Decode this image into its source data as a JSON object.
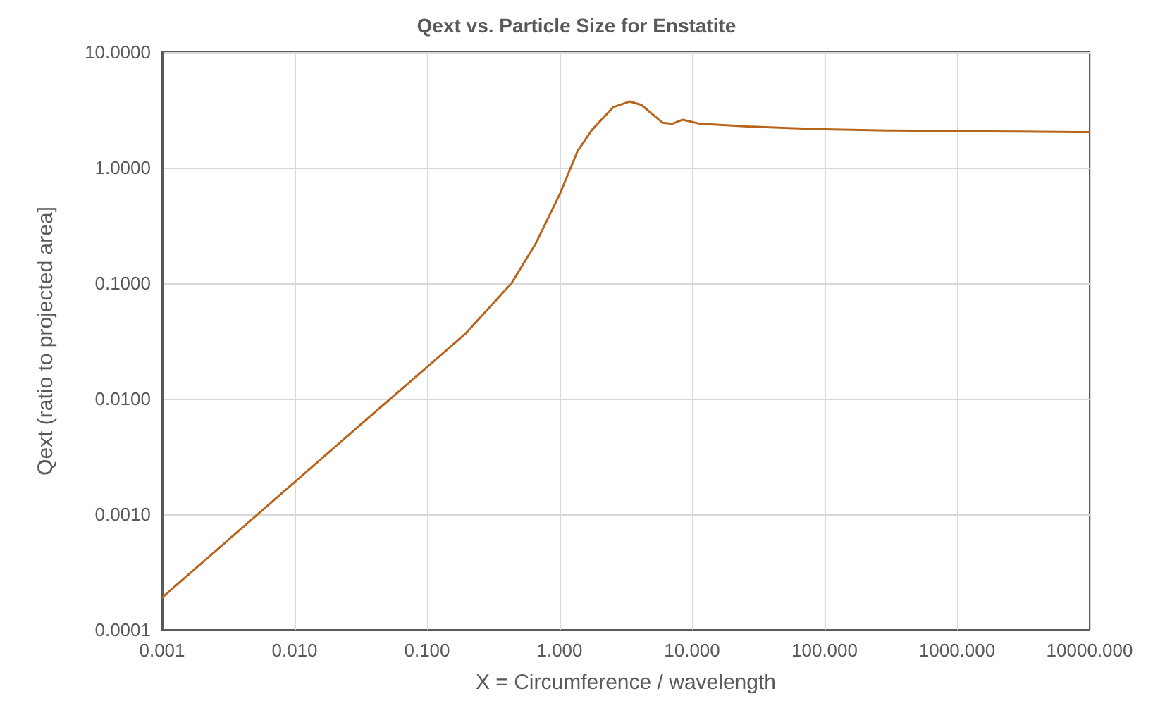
{
  "chart_data": {
    "type": "line",
    "title": "Qext vs. Particle Size for Enstatite",
    "xlabel": "X = Circumference / wavelength",
    "ylabel": "Qext (ratio to projected area]",
    "log": "xy",
    "grid": true,
    "marker": "none",
    "line_style": "solid",
    "xlim": [
      0.001,
      10000
    ],
    "ylim": [
      0.0001,
      10
    ],
    "xticks": [
      {
        "value": 0.001,
        "label": "0.001"
      },
      {
        "value": 0.01,
        "label": "0.010"
      },
      {
        "value": 0.1,
        "label": "0.100"
      },
      {
        "value": 1,
        "label": "1.000"
      },
      {
        "value": 10,
        "label": "10.000"
      },
      {
        "value": 100,
        "label": "100.000"
      },
      {
        "value": 1000,
        "label": "1000.000"
      },
      {
        "value": 10000,
        "label": "10000.000"
      }
    ],
    "yticks": [
      {
        "value": 0.0001,
        "label": "0.0001"
      },
      {
        "value": 0.001,
        "label": "0.0010"
      },
      {
        "value": 0.01,
        "label": "0.0100"
      },
      {
        "value": 0.1,
        "label": "0.1000"
      },
      {
        "value": 1,
        "label": "1.0000"
      },
      {
        "value": 10,
        "label": "10.0000"
      }
    ],
    "x": [
      0.001,
      0.003,
      0.01,
      0.03,
      0.093,
      0.194,
      0.3,
      0.434,
      0.66,
      1.01,
      1.37,
      1.76,
      2.54,
      3.37,
      4.13,
      5.98,
      7.1,
      8.5,
      11.4,
      17.1,
      26.2,
      53,
      100,
      300,
      1000,
      3000,
      10000
    ],
    "series": [
      {
        "color": "#b8651b",
        "values": [
          0.00019,
          0.00057,
          0.0019,
          0.0057,
          0.0175,
          0.0364,
          0.063,
          0.1,
          0.22,
          0.6,
          1.4,
          2.13,
          3.34,
          3.74,
          3.5,
          2.45,
          2.4,
          2.6,
          2.4,
          2.34,
          2.27,
          2.2,
          2.15,
          2.1,
          2.07,
          2.05,
          2.03
        ]
      }
    ]
  }
}
